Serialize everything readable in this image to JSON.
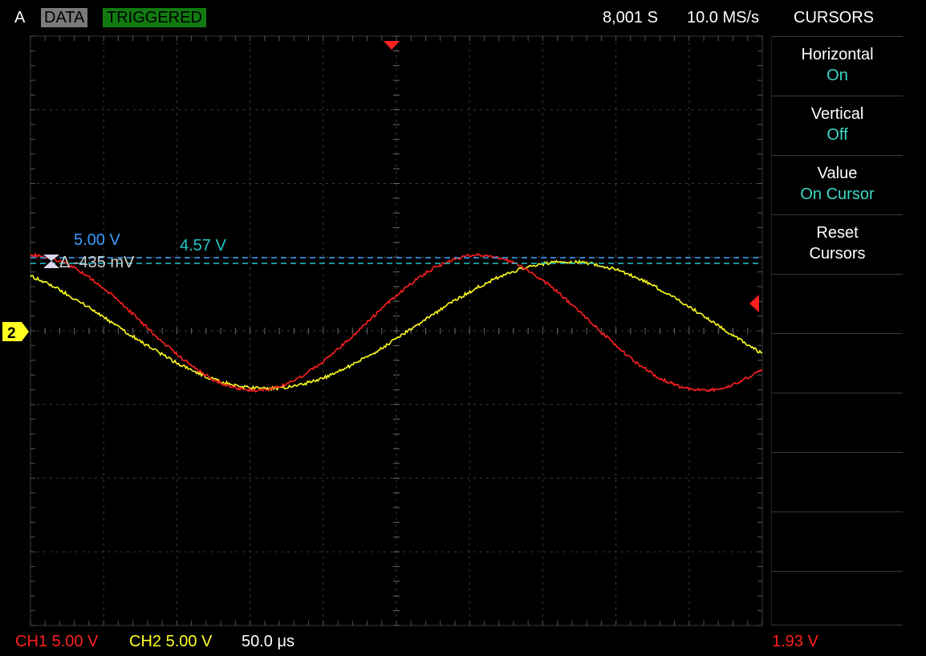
{
  "header": {
    "channel": "A",
    "data_badge": "DATA",
    "status": "TRIGGERED",
    "record_length": "8,001 S",
    "sample_rate": "10.0 MS/s",
    "menu_title": "CURSORS"
  },
  "menu": {
    "items": [
      {
        "label": "Horizontal",
        "value": "On"
      },
      {
        "label": "Vertical",
        "value": "Off"
      },
      {
        "label": "Value",
        "value": "On Cursor"
      },
      {
        "label": "Reset",
        "value": "Cursors"
      },
      {
        "label": "",
        "value": ""
      },
      {
        "label": "",
        "value": ""
      },
      {
        "label": "",
        "value": ""
      },
      {
        "label": "",
        "value": ""
      },
      {
        "label": "",
        "value": ""
      },
      {
        "label": "",
        "value": ""
      }
    ]
  },
  "cursors": {
    "a_value": "5.00 V",
    "b_value": "4.57 V",
    "delta": "Δ -435 mV"
  },
  "footer": {
    "ch1_scale": "CH1 5.00 V",
    "ch2_scale": "CH2 5.00 V",
    "time_scale": "50.0 μs",
    "trigger_level": "1.93 V"
  },
  "markers": {
    "ch2_ground": "2"
  },
  "colors": {
    "ch1": "#ff2020",
    "ch2": "#ffff20",
    "cursor_a": "#3a9dff",
    "cursor_b": "#26c6c6",
    "accent_value": "#3fd8c8",
    "triggered_badge": "#107a10"
  }
}
